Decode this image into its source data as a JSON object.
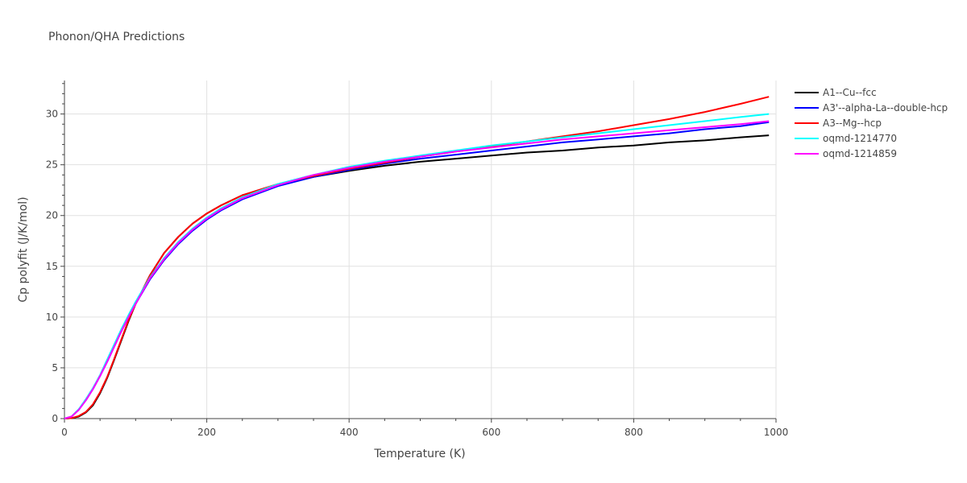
{
  "chart_data": {
    "type": "line",
    "title": "Phonon/QHA Predictions",
    "xlabel": "Temperature (K)",
    "ylabel": "Cp polyfit (J/K/mol)",
    "xlim": [
      0,
      1000
    ],
    "ylim": [
      0,
      33.3
    ],
    "xticks": [
      0,
      200,
      400,
      600,
      800,
      1000
    ],
    "yticks": [
      0,
      5,
      10,
      15,
      20,
      25,
      30
    ],
    "grid": true,
    "legend_position": "top-right",
    "series": [
      {
        "name": "A1--Cu--fcc",
        "color": "#000000",
        "x": [
          0,
          10,
          20,
          30,
          40,
          50,
          60,
          70,
          80,
          90,
          100,
          120,
          140,
          160,
          180,
          200,
          220,
          250,
          300,
          350,
          400,
          450,
          500,
          550,
          600,
          650,
          700,
          750,
          800,
          850,
          900,
          950,
          990
        ],
        "y": [
          0,
          0.05,
          0.2,
          0.6,
          1.3,
          2.5,
          4.0,
          5.8,
          7.7,
          9.6,
          11.3,
          14.1,
          16.3,
          17.9,
          19.2,
          20.2,
          21.0,
          22.0,
          23.0,
          23.8,
          24.4,
          24.9,
          25.3,
          25.6,
          25.9,
          26.2,
          26.4,
          26.7,
          26.9,
          27.2,
          27.4,
          27.7,
          27.9
        ]
      },
      {
        "name": "A3'--alpha-La--double-hcp",
        "color": "#0000ff",
        "x": [
          0,
          10,
          20,
          30,
          40,
          50,
          60,
          70,
          80,
          90,
          100,
          120,
          140,
          160,
          180,
          200,
          220,
          250,
          300,
          350,
          400,
          450,
          500,
          550,
          600,
          650,
          700,
          750,
          800,
          850,
          900,
          950,
          990
        ],
        "y": [
          0,
          0.2,
          0.9,
          1.8,
          2.9,
          4.2,
          5.6,
          7.1,
          8.6,
          10.0,
          11.3,
          13.7,
          15.6,
          17.2,
          18.5,
          19.6,
          20.5,
          21.6,
          22.9,
          23.8,
          24.5,
          25.1,
          25.6,
          26.0,
          26.4,
          26.8,
          27.2,
          27.5,
          27.8,
          28.1,
          28.5,
          28.8,
          29.2
        ]
      },
      {
        "name": "A3--Mg--hcp",
        "color": "#ff0000",
        "x": [
          0,
          10,
          20,
          30,
          40,
          50,
          60,
          70,
          80,
          90,
          100,
          120,
          140,
          160,
          180,
          200,
          220,
          250,
          300,
          350,
          400,
          450,
          500,
          550,
          600,
          650,
          700,
          750,
          800,
          850,
          900,
          950,
          990
        ],
        "y": [
          0,
          0.05,
          0.25,
          0.65,
          1.4,
          2.6,
          4.1,
          5.9,
          7.8,
          9.7,
          11.3,
          14.1,
          16.3,
          17.9,
          19.2,
          20.2,
          21.0,
          22.0,
          23.1,
          23.9,
          24.6,
          25.2,
          25.8,
          26.3,
          26.8,
          27.3,
          27.8,
          28.3,
          28.9,
          29.5,
          30.2,
          31.0,
          31.7
        ]
      },
      {
        "name": "oqmd-1214770",
        "color": "#00ffff",
        "x": [
          0,
          10,
          20,
          30,
          40,
          50,
          60,
          70,
          80,
          90,
          100,
          120,
          140,
          160,
          180,
          200,
          220,
          250,
          300,
          350,
          400,
          450,
          500,
          550,
          600,
          650,
          700,
          750,
          800,
          850,
          900,
          950,
          990
        ],
        "y": [
          0,
          0.2,
          0.9,
          1.9,
          3.0,
          4.3,
          5.8,
          7.3,
          8.8,
          10.2,
          11.5,
          13.9,
          15.8,
          17.4,
          18.7,
          19.8,
          20.7,
          21.8,
          23.1,
          24.0,
          24.8,
          25.4,
          25.9,
          26.4,
          26.9,
          27.3,
          27.7,
          28.1,
          28.5,
          28.9,
          29.3,
          29.7,
          30.0
        ]
      },
      {
        "name": "oqmd-1214859",
        "color": "#ff00ff",
        "x": [
          0,
          10,
          20,
          30,
          40,
          50,
          60,
          70,
          80,
          90,
          100,
          120,
          140,
          160,
          180,
          200,
          220,
          250,
          300,
          350,
          400,
          450,
          500,
          550,
          600,
          650,
          700,
          750,
          800,
          850,
          900,
          950,
          990
        ],
        "y": [
          0,
          0.2,
          0.85,
          1.8,
          2.9,
          4.2,
          5.6,
          7.1,
          8.6,
          10.0,
          11.3,
          13.8,
          15.7,
          17.3,
          18.6,
          19.7,
          20.6,
          21.7,
          23.0,
          24.0,
          24.7,
          25.3,
          25.8,
          26.3,
          26.7,
          27.1,
          27.5,
          27.8,
          28.1,
          28.4,
          28.7,
          29.0,
          29.3
        ]
      }
    ]
  }
}
